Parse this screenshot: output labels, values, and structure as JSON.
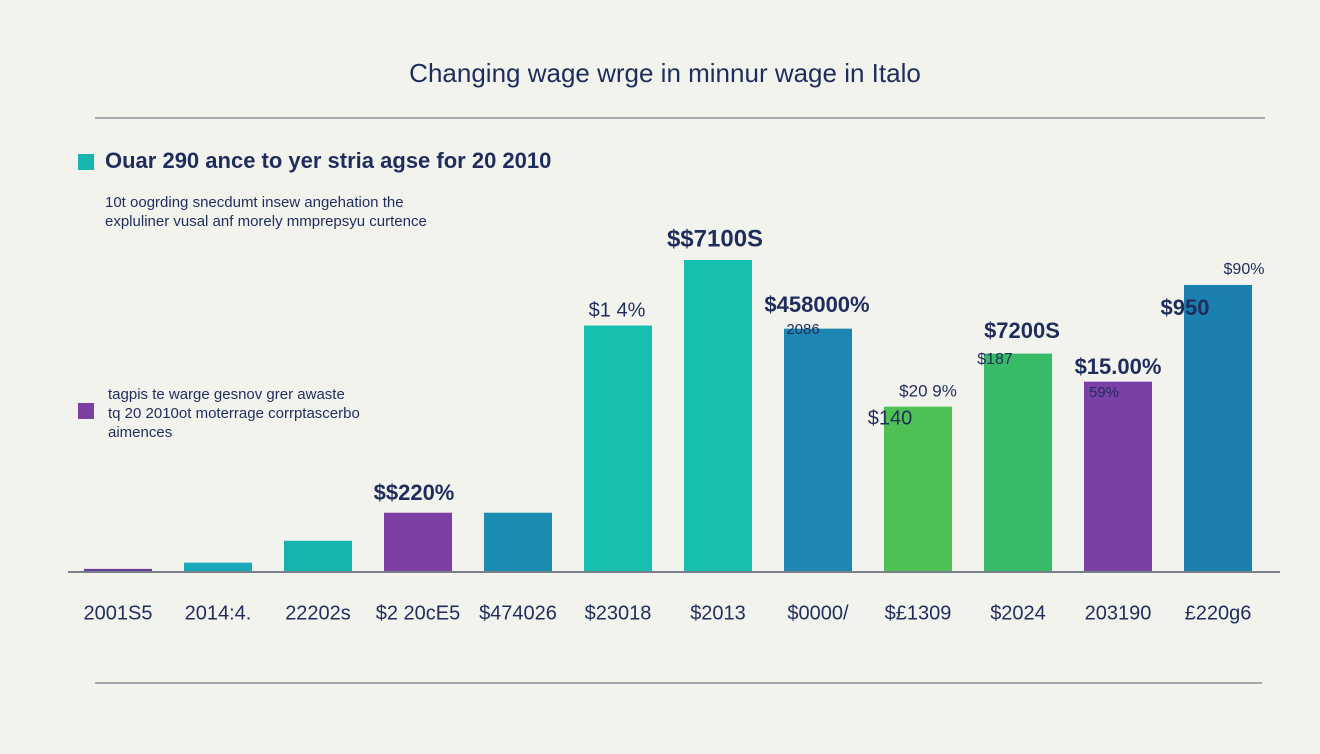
{
  "chart_data": {
    "type": "bar",
    "title": "Changing wage wrge in minnur wage in Italo",
    "subtitle": [
      "10t oogrding snecdumt insew angehation the",
      "expluliner vusal anf morely mmprepsyu curtence"
    ],
    "legend": [
      {
        "label": [
          "Ouar 290 ance to yer stria agse for 20 2010"
        ],
        "color": "#17b5b0"
      },
      {
        "label": [
          "tagpis te warge gesnov grer awaste",
          "tq 20 2010ot moterrage corrptascerbo",
          "aimences"
        ],
        "color": "#7b3fa3"
      }
    ],
    "categories": [
      "2001S5",
      "2014:4.",
      "22202s",
      "$2 20cE5",
      "$474026",
      "$23018",
      "$2013",
      "$0000/",
      "$£1309",
      "$2024",
      "203190",
      "£220g6"
    ],
    "values": [
      1,
      3,
      10,
      19,
      19,
      79,
      100,
      78,
      53,
      70,
      61,
      92
    ],
    "colors": [
      "#6a3e9c",
      "#1aa9b8",
      "#16b3ae",
      "#7d3fa6",
      "#1b8db3",
      "#17bfae",
      "#16bfae",
      "#1d86b3",
      "#4fc154",
      "#38bb66",
      "#7b40a6",
      "#1b7fb0"
    ],
    "annotations": [
      "$$220%",
      "$1 4%",
      "$$7100S",
      "$458000%",
      "2086",
      "$20 9%",
      "$140",
      "$7200S",
      "$187",
      "$15.00%",
      "59%",
      "$90%",
      "$950"
    ]
  }
}
